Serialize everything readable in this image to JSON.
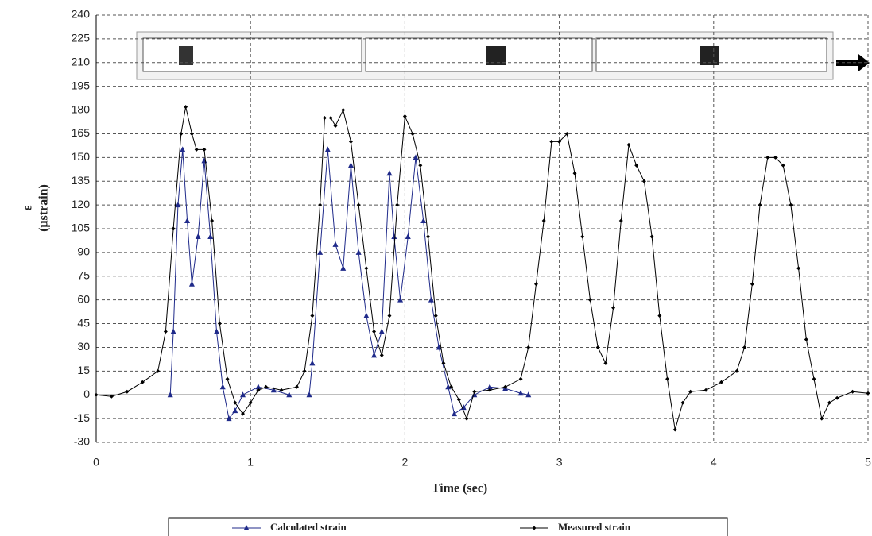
{
  "chart_data": {
    "type": "line",
    "xlabel": "Time (sec)",
    "ylabel": [
      "ε",
      "(μstrain)"
    ],
    "xlim": [
      0,
      5
    ],
    "xticks": [
      0,
      1,
      2,
      3,
      4,
      5
    ],
    "ylim": [
      -30,
      240
    ],
    "yticks": [
      -30,
      -15,
      0,
      15,
      30,
      45,
      60,
      75,
      90,
      105,
      120,
      135,
      150,
      165,
      180,
      195,
      210,
      225,
      240
    ],
    "grid": true,
    "legend": "bottom",
    "series": [
      {
        "name": "Calculated strain",
        "color": "#1f2a8a",
        "marker": "triangle",
        "x": [
          0.48,
          0.5,
          0.53,
          0.56,
          0.59,
          0.62,
          0.66,
          0.7,
          0.74,
          0.78,
          0.82,
          0.86,
          0.9,
          0.95,
          1.05,
          1.15,
          1.25,
          1.38,
          1.4,
          1.45,
          1.5,
          1.55,
          1.6,
          1.65,
          1.7,
          1.75,
          1.8,
          1.85,
          1.9,
          1.93,
          1.97,
          2.02,
          2.07,
          2.12,
          2.17,
          2.22,
          2.28,
          2.32,
          2.38,
          2.45,
          2.55,
          2.65,
          2.75,
          2.8
        ],
        "values": [
          0,
          40,
          120,
          155,
          110,
          70,
          100,
          148,
          100,
          40,
          5,
          -15,
          -10,
          0,
          5,
          3,
          0,
          0,
          20,
          90,
          155,
          95,
          80,
          145,
          90,
          50,
          25,
          40,
          140,
          100,
          60,
          100,
          150,
          110,
          60,
          30,
          5,
          -12,
          -8,
          0,
          5,
          4,
          1,
          0
        ]
      },
      {
        "name": "Measured strain",
        "color": "#000000",
        "marker": "diamond",
        "x": [
          0,
          0.1,
          0.2,
          0.3,
          0.4,
          0.45,
          0.5,
          0.55,
          0.58,
          0.62,
          0.65,
          0.7,
          0.75,
          0.8,
          0.85,
          0.9,
          0.95,
          1.0,
          1.05,
          1.1,
          1.2,
          1.3,
          1.35,
          1.4,
          1.45,
          1.48,
          1.52,
          1.55,
          1.6,
          1.65,
          1.7,
          1.75,
          1.8,
          1.85,
          1.9,
          1.95,
          2.0,
          2.05,
          2.1,
          2.15,
          2.2,
          2.25,
          2.3,
          2.35,
          2.4,
          2.45,
          2.55,
          2.65,
          2.75,
          2.8,
          2.85,
          2.9,
          2.95,
          3.0,
          3.05,
          3.1,
          3.15,
          3.2,
          3.25,
          3.3,
          3.35,
          3.4,
          3.45,
          3.5,
          3.55,
          3.6,
          3.65,
          3.7,
          3.75,
          3.8,
          3.85,
          3.95,
          4.05,
          4.15,
          4.2,
          4.25,
          4.3,
          4.35,
          4.4,
          4.45,
          4.5,
          4.55,
          4.6,
          4.65,
          4.7,
          4.75,
          4.8,
          4.9,
          5.0
        ],
        "values": [
          0,
          -1,
          2,
          8,
          15,
          40,
          105,
          165,
          182,
          165,
          155,
          155,
          110,
          45,
          10,
          -5,
          -12,
          -5,
          3,
          5,
          3,
          5,
          15,
          50,
          120,
          175,
          175,
          170,
          180,
          160,
          120,
          80,
          40,
          25,
          50,
          120,
          176,
          165,
          145,
          100,
          50,
          20,
          5,
          -3,
          -15,
          2,
          3,
          5,
          10,
          30,
          70,
          110,
          160,
          160,
          165,
          140,
          100,
          60,
          30,
          20,
          55,
          110,
          158,
          145,
          135,
          100,
          50,
          10,
          -22,
          -5,
          2,
          3,
          8,
          15,
          30,
          70,
          120,
          150,
          150,
          145,
          120,
          80,
          35,
          10,
          -15,
          -5,
          -2,
          2,
          1
        ]
      }
    ]
  }
}
